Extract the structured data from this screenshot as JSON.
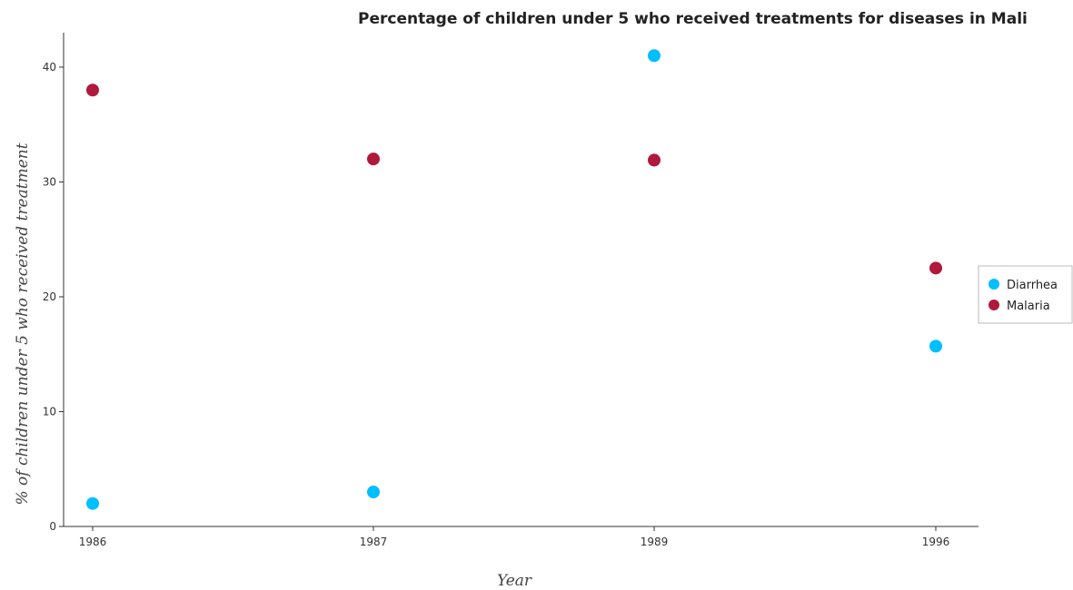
{
  "chart_data": {
    "type": "scatter",
    "title": "Percentage of children under 5 who received treatments for diseases in Mali",
    "xlabel": "Year",
    "ylabel": "% of children under 5 who received treatment",
    "categories": [
      "1986",
      "1987",
      "1989",
      "1996"
    ],
    "ylim": [
      0,
      43
    ],
    "yticks": [
      0,
      10,
      20,
      30,
      40
    ],
    "series": [
      {
        "name": "Diarrhea",
        "color": "#00bfff",
        "values": [
          2.0,
          3.0,
          41.0,
          15.7
        ]
      },
      {
        "name": "Malaria",
        "color": "#b0193c",
        "values": [
          38.0,
          32.0,
          31.9,
          22.5
        ]
      }
    ],
    "legend_position": "right",
    "grid": false
  }
}
